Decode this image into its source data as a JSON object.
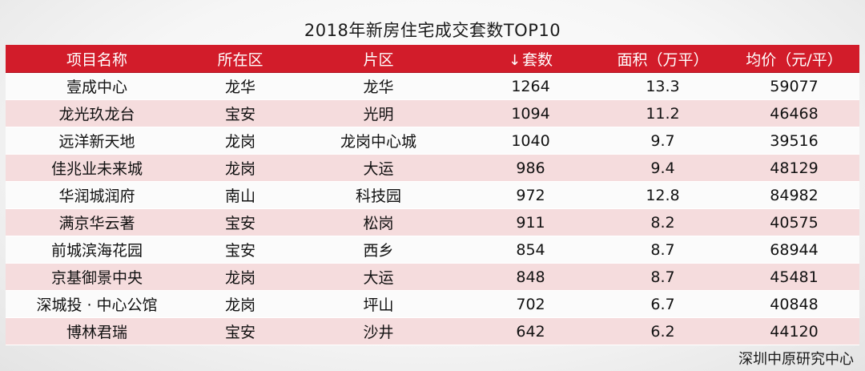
{
  "title": "2018年新房住宅成交套数TOP10",
  "table": {
    "headers": [
      "项目名称",
      "所在区",
      "片区",
      "套数",
      "面积（万平）",
      "均价（元/平）"
    ],
    "sort_indicator": "↓",
    "rows": [
      [
        "壹成中心",
        "龙华",
        "龙华",
        "1264",
        "13.3",
        "59077"
      ],
      [
        "龙光玖龙台",
        "宝安",
        "光明",
        "1094",
        "11.2",
        "46468"
      ],
      [
        "远洋新天地",
        "龙岗",
        "龙岗中心城",
        "1040",
        "9.7",
        "39516"
      ],
      [
        "佳兆业未来城",
        "龙岗",
        "大运",
        "986",
        "9.4",
        "48129"
      ],
      [
        "华润城润府",
        "南山",
        "科技园",
        "972",
        "12.8",
        "84982"
      ],
      [
        "满京华云著",
        "宝安",
        "松岗",
        "911",
        "8.2",
        "40575"
      ],
      [
        "前城滨海花园",
        "宝安",
        "西乡",
        "854",
        "8.7",
        "68944"
      ],
      [
        "京基御景中央",
        "龙岗",
        "大运",
        "848",
        "8.7",
        "45481"
      ],
      [
        "深城投 · 中心公馆",
        "龙岗",
        "坪山",
        "702",
        "6.7",
        "40848"
      ],
      [
        "博林君瑞",
        "宝安",
        "沙井",
        "642",
        "6.2",
        "44120"
      ]
    ]
  },
  "source": "深圳中原研究中心",
  "colors": {
    "header_bg": "#d21c2a",
    "stripe_bg": "#f5dcdd"
  }
}
